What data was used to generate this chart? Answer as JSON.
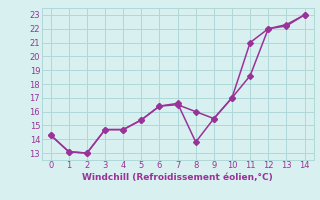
{
  "line1_x": [
    0,
    1,
    2,
    3,
    4,
    5,
    6,
    7,
    8,
    9,
    10,
    11,
    12,
    13,
    14
  ],
  "line1_y": [
    14.3,
    13.1,
    13.0,
    14.7,
    14.7,
    15.4,
    16.4,
    16.5,
    16.0,
    15.5,
    17.0,
    18.6,
    22.0,
    22.2,
    23.0
  ],
  "line2_x": [
    0,
    1,
    2,
    3,
    4,
    5,
    6,
    7,
    8,
    9,
    10,
    11,
    12,
    13,
    14
  ],
  "line2_y": [
    14.3,
    13.1,
    13.0,
    14.7,
    14.7,
    15.4,
    16.4,
    16.6,
    13.8,
    15.5,
    17.0,
    21.0,
    22.0,
    22.3,
    23.0
  ],
  "line_color": "#993399",
  "bg_color": "#d8f0f0",
  "grid_color": "#b0d8d8",
  "xlabel": "Windchill (Refroidissement éolien,°C)",
  "xlim": [
    -0.5,
    14.5
  ],
  "ylim": [
    12.5,
    23.5
  ],
  "yticks": [
    13,
    14,
    15,
    16,
    17,
    18,
    19,
    20,
    21,
    22,
    23
  ],
  "xticks": [
    0,
    1,
    2,
    3,
    4,
    5,
    6,
    7,
    8,
    9,
    10,
    11,
    12,
    13,
    14
  ],
  "label_fontsize": 6.5,
  "tick_fontsize": 6.0,
  "line_width": 1.1,
  "marker_size": 3.0
}
